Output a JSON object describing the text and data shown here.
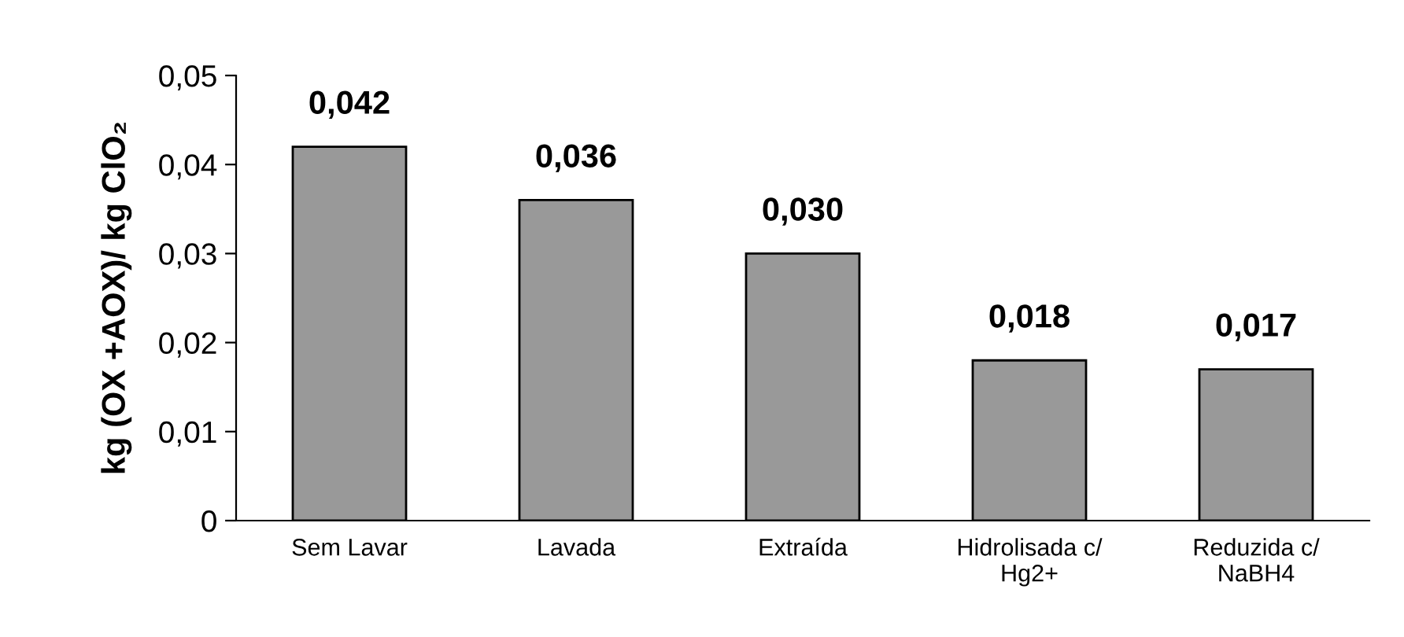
{
  "chart_data": {
    "type": "bar",
    "ylabel": "kg (OX +AOX)/ kg ClO₂",
    "categories": [
      "Sem Lavar",
      "Lavada",
      "Extraída",
      "Hidrolisada c/\nHg2+",
      "Reduzida c/\nNaBH4"
    ],
    "values": [
      0.042,
      0.036,
      0.03,
      0.018,
      0.017
    ],
    "value_labels": [
      "0,042",
      "0,036",
      "0,030",
      "0,018",
      "0,017"
    ],
    "color": "#999999",
    "ylim": [
      0,
      0.05
    ],
    "yticks": [
      {
        "value": 0,
        "label": "0"
      },
      {
        "value": 0.01,
        "label": "0,01"
      },
      {
        "value": 0.02,
        "label": "0,02"
      },
      {
        "value": 0.03,
        "label": "0,03"
      },
      {
        "value": 0.04,
        "label": "0,04"
      },
      {
        "value": 0.05,
        "label": "0,05"
      }
    ],
    "grid": false,
    "legend": false
  }
}
